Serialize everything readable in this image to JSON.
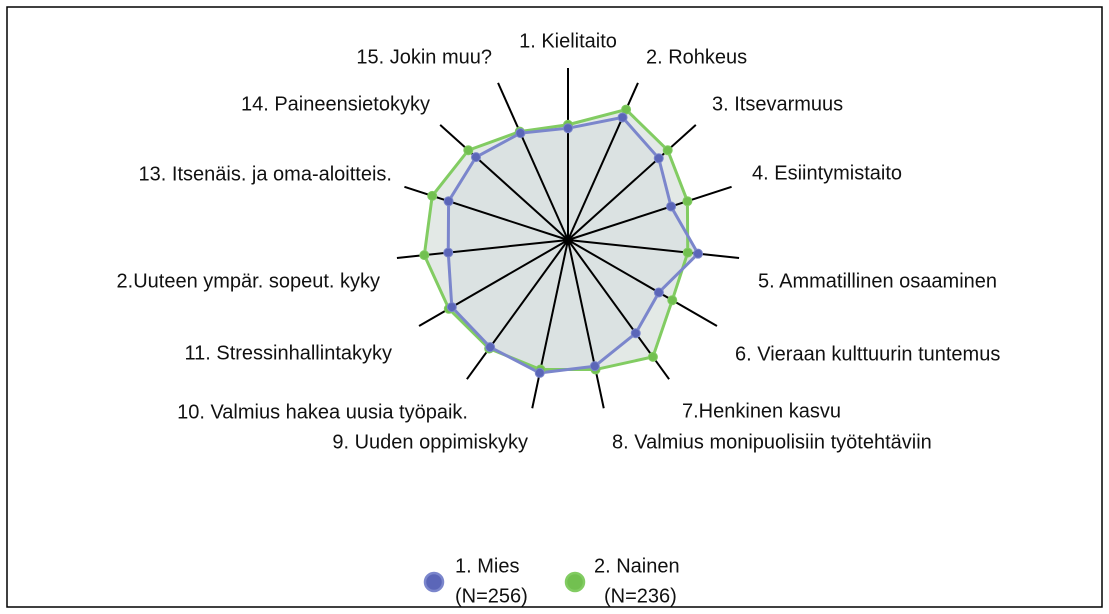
{
  "chart_data": {
    "type": "radar",
    "categories": [
      "1. Kielitaito",
      "2. Rohkeus",
      "3. Itsevarmuus",
      "4. Esiintymistaito",
      "5. Ammatillinen osaaminen",
      "6. Vieraan kulttuurin tuntemus",
      "7.Henkinen kasvu",
      "8. Valmius monipuolisiin työtehtäviin",
      "9. Uuden oppimiskyky",
      "10. Valmius hakea uusia työpaik.",
      "11. Stressinhallintakyky",
      "2.Uuteen ympär. sopeut. kyky",
      "13. Itsenäis. ja oma-aloitteis.",
      "14. Paineensietokyky",
      "15. Jokin muu?"
    ],
    "series": [
      {
        "name": "1. Mies",
        "sample": "(N=256)",
        "color": "#7b86cc",
        "marker_color": "#5b66b8",
        "values": [
          0.65,
          0.78,
          0.71,
          0.63,
          0.76,
          0.61,
          0.67,
          0.75,
          0.79,
          0.77,
          0.78,
          0.7,
          0.73,
          0.72,
          0.68
        ]
      },
      {
        "name": "2. Nainen",
        "sample": "(N=236)",
        "color": "#82cc62",
        "marker_color": "#72c050",
        "values": [
          0.67,
          0.83,
          0.78,
          0.73,
          0.7,
          0.7,
          0.84,
          0.77,
          0.77,
          0.78,
          0.8,
          0.84,
          0.83,
          0.78,
          0.69
        ]
      }
    ],
    "ylim": [
      0,
      1
    ]
  }
}
